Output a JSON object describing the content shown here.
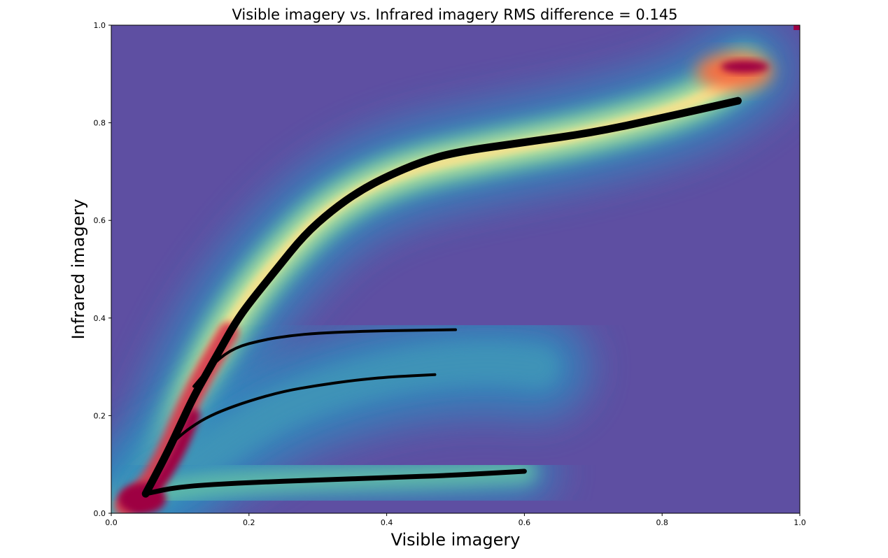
{
  "chart_data": {
    "type": "heatmap",
    "title": "Visible imagery vs. Infrared imagery  RMS difference = 0.145",
    "xlabel": "Visible imagery",
    "ylabel": "Infrared imagery",
    "xlim": [
      0.0,
      1.0
    ],
    "ylim": [
      0.0,
      1.0
    ],
    "xticks": [
      "0.0",
      "0.2",
      "0.4",
      "0.6",
      "0.8",
      "1.0"
    ],
    "yticks": [
      "0.0",
      "0.2",
      "0.4",
      "0.6",
      "0.8",
      "1.0"
    ],
    "grid": false,
    "colormap": "Spectral_r",
    "background_color": "#5e4fa2",
    "density_ridges": [
      {
        "points": [
          [
            0.02,
            0.015
          ],
          [
            0.05,
            0.05
          ],
          [
            0.08,
            0.12
          ],
          [
            0.11,
            0.22
          ],
          [
            0.14,
            0.31
          ],
          [
            0.18,
            0.41
          ],
          [
            0.24,
            0.52
          ],
          [
            0.32,
            0.63
          ],
          [
            0.42,
            0.7
          ],
          [
            0.55,
            0.74
          ],
          [
            0.7,
            0.78
          ],
          [
            0.85,
            0.84
          ],
          [
            0.92,
            0.91
          ]
        ]
      },
      {
        "points": [
          [
            0.06,
            0.05
          ],
          [
            0.12,
            0.1
          ],
          [
            0.18,
            0.16
          ],
          [
            0.25,
            0.22
          ],
          [
            0.35,
            0.27
          ],
          [
            0.45,
            0.3
          ],
          [
            0.55,
            0.31
          ],
          [
            0.62,
            0.3
          ]
        ]
      },
      {
        "points": [
          [
            0.06,
            0.04
          ],
          [
            0.15,
            0.06
          ],
          [
            0.3,
            0.07
          ],
          [
            0.45,
            0.075
          ],
          [
            0.6,
            0.085
          ]
        ]
      }
    ],
    "series": [
      {
        "color": "#000000",
        "line_weight": "heavy",
        "x": [
          0.05,
          0.08,
          0.1,
          0.12,
          0.14,
          0.16,
          0.18,
          0.2,
          0.24,
          0.28,
          0.32,
          0.36,
          0.4,
          0.45,
          0.5,
          0.6,
          0.7,
          0.8,
          0.91
        ],
        "y": [
          0.04,
          0.12,
          0.18,
          0.24,
          0.29,
          0.34,
          0.39,
          0.43,
          0.5,
          0.57,
          0.62,
          0.66,
          0.69,
          0.72,
          0.74,
          0.76,
          0.78,
          0.81,
          0.845
        ]
      },
      {
        "color": "#000000",
        "line_weight": "medium",
        "x": [
          0.05,
          0.1,
          0.2,
          0.3,
          0.4,
          0.5,
          0.6
        ],
        "y": [
          0.04,
          0.055,
          0.063,
          0.068,
          0.073,
          0.078,
          0.086
        ]
      },
      {
        "color": "#000000",
        "line_weight": "thin",
        "x": [
          0.12,
          0.15,
          0.18,
          0.22,
          0.26,
          0.3,
          0.35,
          0.4,
          0.45,
          0.5
        ],
        "y": [
          0.26,
          0.31,
          0.34,
          0.355,
          0.364,
          0.369,
          0.372,
          0.374,
          0.375,
          0.376
        ]
      },
      {
        "color": "#000000",
        "line_weight": "thin",
        "x": [
          0.08,
          0.1,
          0.13,
          0.16,
          0.2,
          0.25,
          0.3,
          0.35,
          0.4,
          0.47
        ],
        "y": [
          0.13,
          0.16,
          0.19,
          0.21,
          0.23,
          0.25,
          0.262,
          0.272,
          0.279,
          0.284
        ]
      }
    ]
  }
}
